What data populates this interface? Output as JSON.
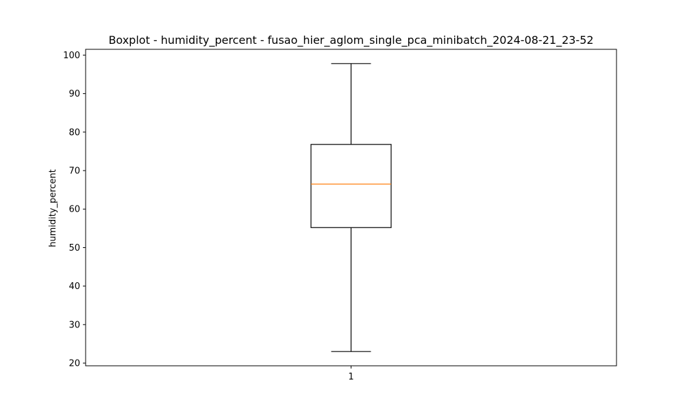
{
  "chart_data": {
    "type": "boxplot",
    "title": "Boxplot - humidity_percent - fusao_hier_aglom_single_pca_minibatch_2024-08-21_23-52",
    "xlabel": "",
    "ylabel": "humidity_percent",
    "categories": [
      "1"
    ],
    "boxes": [
      {
        "category": "1",
        "whisker_low": 23.0,
        "q1": 55.2,
        "median": 66.5,
        "q3": 76.8,
        "whisker_high": 97.8
      }
    ],
    "ylim": [
      19.3,
      101.5
    ],
    "yticks": [
      20,
      30,
      40,
      50,
      60,
      70,
      80,
      90,
      100
    ],
    "grid": false,
    "colors": {
      "box": "#000000",
      "median": "#ff7f0e",
      "whisker": "#000000"
    }
  }
}
